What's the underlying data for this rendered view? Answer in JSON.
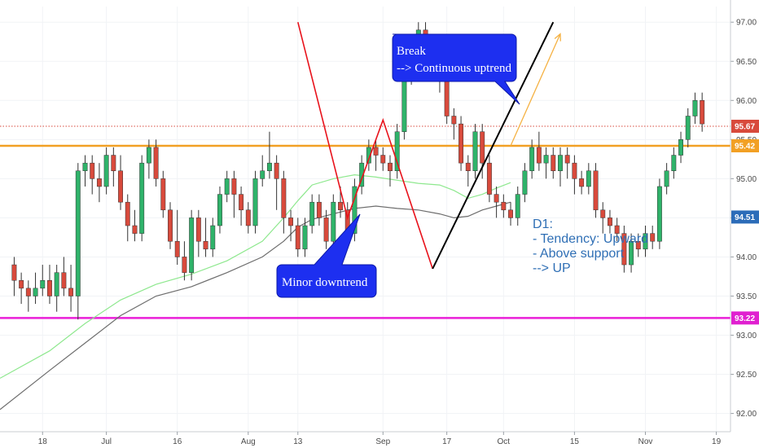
{
  "chart_data": {
    "type": "candlestick",
    "y_ticks": [
      "97.00",
      "96.50",
      "96.00",
      "95.50",
      "95.00",
      "94.50",
      "94.00",
      "93.50",
      "93.00",
      "92.50",
      "92.00"
    ],
    "ylim": [
      91.85,
      97.2
    ],
    "x_ticks": [
      {
        "label": "18",
        "x": 4
      },
      {
        "label": "Jul",
        "x": 13
      },
      {
        "label": "16",
        "x": 23
      },
      {
        "label": "Aug",
        "x": 33
      },
      {
        "label": "13",
        "x": 40
      },
      {
        "label": "Sep",
        "x": 52
      },
      {
        "label": "17",
        "x": 61
      },
      {
        "label": "Oct",
        "x": 69
      },
      {
        "label": "15",
        "x": 79
      },
      {
        "label": "Nov",
        "x": 89
      },
      {
        "label": "19",
        "x": 99
      }
    ],
    "xlim": [
      -2,
      101
    ],
    "candles": [
      [
        93.9,
        93.7,
        94.0,
        93.5
      ],
      [
        93.7,
        93.6,
        93.8,
        93.4
      ],
      [
        93.6,
        93.5,
        93.7,
        93.3
      ],
      [
        93.5,
        93.6,
        93.8,
        93.4
      ],
      [
        93.6,
        93.7,
        93.9,
        93.5
      ],
      [
        93.7,
        93.5,
        93.9,
        93.4
      ],
      [
        93.5,
        93.8,
        93.9,
        93.3
      ],
      [
        93.8,
        93.6,
        94.0,
        93.5
      ],
      [
        93.6,
        93.5,
        93.9,
        93.3
      ],
      [
        93.5,
        95.1,
        95.2,
        93.2
      ],
      [
        95.1,
        95.2,
        95.3,
        94.9
      ],
      [
        95.2,
        95.0,
        95.3,
        94.8
      ],
      [
        95.0,
        94.9,
        95.2,
        94.7
      ],
      [
        94.9,
        95.3,
        95.4,
        94.8
      ],
      [
        95.3,
        95.1,
        95.4,
        94.9
      ],
      [
        95.1,
        94.7,
        95.3,
        94.6
      ],
      [
        94.7,
        94.4,
        94.8,
        94.2
      ],
      [
        94.4,
        94.3,
        94.6,
        94.2
      ],
      [
        94.3,
        95.2,
        95.3,
        94.2
      ],
      [
        95.2,
        95.4,
        95.5,
        95.0
      ],
      [
        95.4,
        95.0,
        95.5,
        94.9
      ],
      [
        95.0,
        94.6,
        95.1,
        94.5
      ],
      [
        94.6,
        94.2,
        94.7,
        94.1
      ],
      [
        94.2,
        94.0,
        94.6,
        93.9
      ],
      [
        94.0,
        93.8,
        94.2,
        93.7
      ],
      [
        93.8,
        94.5,
        94.6,
        93.7
      ],
      [
        94.5,
        94.2,
        94.6,
        94.0
      ],
      [
        94.2,
        94.1,
        94.5,
        94.0
      ],
      [
        94.1,
        94.4,
        94.5,
        94.0
      ],
      [
        94.4,
        94.8,
        94.9,
        94.3
      ],
      [
        94.8,
        95.0,
        95.1,
        94.7
      ],
      [
        95.0,
        94.8,
        95.1,
        94.5
      ],
      [
        94.8,
        94.6,
        94.9,
        94.4
      ],
      [
        94.6,
        94.4,
        94.7,
        94.3
      ],
      [
        94.4,
        95.0,
        95.1,
        94.3
      ],
      [
        95.0,
        95.1,
        95.3,
        94.9
      ],
      [
        95.1,
        95.2,
        95.6,
        95.0
      ],
      [
        95.2,
        95.0,
        95.3,
        94.6
      ],
      [
        95.0,
        94.5,
        95.1,
        94.3
      ],
      [
        94.5,
        94.4,
        94.6,
        94.2
      ],
      [
        94.4,
        94.1,
        94.5,
        94.0
      ],
      [
        94.1,
        94.4,
        94.5,
        94.0
      ],
      [
        94.4,
        94.7,
        94.8,
        94.3
      ],
      [
        94.7,
        94.5,
        94.8,
        94.4
      ],
      [
        94.5,
        94.2,
        94.6,
        94.1
      ],
      [
        94.2,
        94.7,
        94.8,
        94.1
      ],
      [
        94.7,
        94.6,
        94.9,
        94.5
      ],
      [
        94.6,
        94.3,
        94.7,
        94.2
      ],
      [
        94.3,
        94.9,
        95.0,
        94.2
      ],
      [
        94.9,
        95.2,
        95.3,
        94.8
      ],
      [
        95.2,
        95.4,
        95.5,
        95.1
      ],
      [
        95.4,
        95.3,
        95.5,
        95.1
      ],
      [
        95.3,
        95.2,
        95.4,
        95.1
      ],
      [
        95.2,
        95.1,
        95.3,
        94.9
      ],
      [
        95.1,
        95.6,
        95.7,
        95.0
      ],
      [
        95.6,
        96.3,
        96.4,
        95.5
      ],
      [
        96.3,
        96.6,
        96.7,
        96.2
      ],
      [
        96.6,
        96.9,
        97.0,
        96.5
      ],
      [
        96.9,
        96.7,
        97.0,
        96.5
      ],
      [
        96.7,
        96.6,
        96.8,
        96.3
      ],
      [
        96.6,
        96.3,
        96.7,
        96.1
      ],
      [
        96.3,
        95.8,
        96.4,
        95.7
      ],
      [
        95.8,
        95.7,
        95.9,
        95.5
      ],
      [
        95.7,
        95.2,
        95.8,
        95.1
      ],
      [
        95.2,
        95.1,
        95.3,
        94.9
      ],
      [
        95.1,
        95.6,
        95.7,
        95.0
      ],
      [
        95.6,
        95.2,
        95.7,
        95.0
      ],
      [
        95.2,
        94.8,
        95.3,
        94.7
      ],
      [
        94.8,
        94.7,
        94.9,
        94.5
      ],
      [
        94.7,
        94.6,
        94.8,
        94.5
      ],
      [
        94.6,
        94.5,
        94.7,
        94.4
      ],
      [
        94.5,
        94.8,
        94.9,
        94.4
      ],
      [
        94.8,
        95.1,
        95.2,
        94.7
      ],
      [
        95.1,
        95.4,
        95.5,
        95.0
      ],
      [
        95.4,
        95.2,
        95.6,
        95.1
      ],
      [
        95.2,
        95.3,
        95.4,
        95.0
      ],
      [
        95.3,
        95.1,
        95.4,
        95.0
      ],
      [
        95.1,
        95.3,
        95.4,
        94.9
      ],
      [
        95.3,
        95.2,
        95.4,
        95.0
      ],
      [
        95.2,
        95.0,
        95.3,
        94.8
      ],
      [
        95.0,
        94.9,
        95.1,
        94.8
      ],
      [
        94.9,
        95.1,
        95.2,
        94.8
      ],
      [
        95.1,
        94.6,
        95.2,
        94.5
      ],
      [
        94.6,
        94.5,
        94.7,
        94.3
      ],
      [
        94.5,
        94.4,
        94.6,
        94.3
      ],
      [
        94.4,
        94.3,
        94.5,
        94.2
      ],
      [
        94.3,
        93.9,
        94.4,
        93.8
      ],
      [
        93.9,
        94.2,
        94.3,
        93.8
      ],
      [
        94.2,
        94.1,
        94.3,
        94.0
      ],
      [
        94.1,
        94.3,
        94.4,
        94.0
      ],
      [
        94.3,
        94.2,
        94.4,
        94.1
      ],
      [
        94.2,
        94.9,
        95.0,
        94.1
      ],
      [
        94.9,
        95.1,
        95.2,
        94.8
      ],
      [
        95.1,
        95.3,
        95.4,
        95.0
      ],
      [
        95.3,
        95.5,
        95.6,
        95.2
      ],
      [
        95.5,
        95.8,
        95.9,
        95.4
      ],
      [
        95.8,
        96.0,
        96.1,
        95.7
      ],
      [
        96.0,
        95.7,
        96.1,
        95.6
      ]
    ],
    "sma_green": [
      [
        -2,
        92.45
      ],
      [
        5,
        92.8
      ],
      [
        10,
        93.15
      ],
      [
        15,
        93.45
      ],
      [
        20,
        93.65
      ],
      [
        25,
        93.78
      ],
      [
        30,
        93.95
      ],
      [
        35,
        94.2
      ],
      [
        38,
        94.5
      ],
      [
        40,
        94.72
      ],
      [
        42,
        94.92
      ],
      [
        45,
        95.0
      ],
      [
        48,
        95.05
      ],
      [
        51,
        95.02
      ],
      [
        54,
        94.98
      ],
      [
        57,
        94.94
      ],
      [
        60,
        94.92
      ],
      [
        62,
        94.85
      ],
      [
        64,
        94.75
      ],
      [
        66,
        94.8
      ],
      [
        68,
        94.88
      ],
      [
        70,
        94.95
      ]
    ],
    "sma_gray": [
      [
        -2,
        92.05
      ],
      [
        5,
        92.55
      ],
      [
        10,
        92.9
      ],
      [
        15,
        93.25
      ],
      [
        20,
        93.5
      ],
      [
        25,
        93.62
      ],
      [
        30,
        93.8
      ],
      [
        35,
        94.0
      ],
      [
        38,
        94.2
      ],
      [
        40,
        94.38
      ],
      [
        42,
        94.48
      ],
      [
        45,
        94.55
      ],
      [
        48,
        94.62
      ],
      [
        51,
        94.65
      ],
      [
        54,
        94.62
      ],
      [
        57,
        94.6
      ],
      [
        60,
        94.55
      ],
      [
        62,
        94.5
      ],
      [
        64,
        94.52
      ],
      [
        66,
        94.6
      ],
      [
        68,
        94.65
      ],
      [
        70,
        94.7
      ]
    ],
    "zigzag_red": [
      [
        40,
        97.0
      ],
      [
        47,
        94.5
      ],
      [
        52,
        95.75
      ],
      [
        59,
        93.85
      ]
    ],
    "uptrend_line": [
      [
        59,
        93.85
      ],
      [
        76,
        97.0
      ]
    ],
    "projection_arrow": [
      [
        70,
        95.42
      ],
      [
        77,
        96.85
      ]
    ],
    "h_lines": {
      "current": 95.67,
      "resistance": 95.42,
      "support": 93.22
    },
    "price_tags": [
      {
        "label": "95.67",
        "value": 95.67,
        "color": "#d84a3c"
      },
      {
        "label": "95.42",
        "value": 95.42,
        "color": "#f2a024"
      },
      {
        "label": "94.51",
        "value": 94.51,
        "color": "#2c6cb8"
      },
      {
        "label": "93.22",
        "value": 93.22,
        "color": "#e020d0"
      }
    ],
    "annotations": {
      "break_title": "Break",
      "break_sub": "--> Continuous uptrend",
      "minor_downtrend": "Minor downtrend",
      "note_lines": [
        "D1:",
        "- Tendency: Upward",
        "- Above support",
        "--> UP"
      ]
    }
  },
  "colors": {
    "bull": "#2fb36a",
    "bear": "#d84a3c",
    "sma_green": "#8ee88e",
    "sma_gray": "#6d6d6d",
    "resistance": "#f2a024",
    "support": "#ea1fd8",
    "zigzag": "#e8121b",
    "bubble": "#1d2ff0",
    "uptrend": "#000000",
    "projection": "#f5b142"
  }
}
